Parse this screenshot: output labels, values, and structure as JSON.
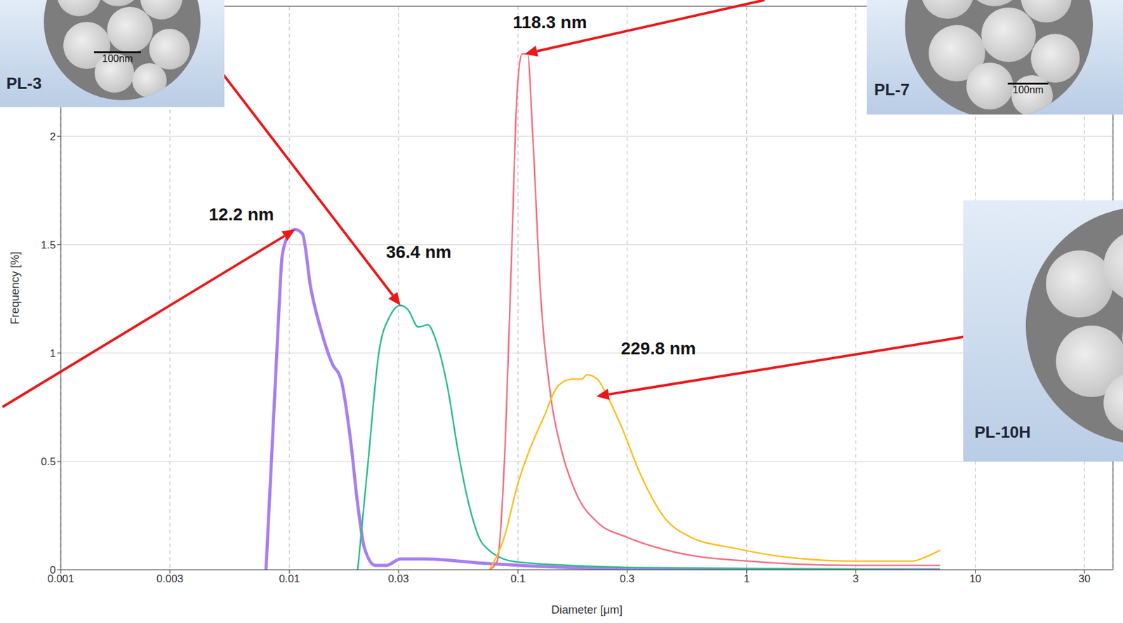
{
  "chart_data": {
    "type": "line",
    "x_label": "Diameter [μm]",
    "y_label": "Frequency [%]",
    "log": "x",
    "grid": true,
    "xlim": [
      0.001,
      40
    ],
    "xticks": [
      0.001,
      0.003,
      0.01,
      0.03,
      0.1,
      0.3,
      1,
      3,
      10,
      30
    ],
    "ylim": [
      0,
      2.6
    ],
    "yticks": [
      0,
      0.5,
      1,
      1.5,
      2
    ],
    "series": [
      {
        "color": "#a67ff0",
        "x": [
          0.0079,
          0.009,
          0.0093,
          0.01,
          0.0106,
          0.0114,
          0.0124,
          0.0138,
          0.0154,
          0.0168,
          0.0185,
          0.0199,
          0.0213,
          0.0238,
          0.0265,
          0.0306,
          0.0394,
          0.07,
          0.167,
          0.71,
          7
        ],
        "values": [
          0,
          1.2,
          1.45,
          1.55,
          1.57,
          1.55,
          1.3,
          1.1,
          0.95,
          0.88,
          0.6,
          0.3,
          0.1,
          0.02,
          0.02,
          0.05,
          0.05,
          0.03,
          0.01,
          0,
          0
        ]
      },
      {
        "color": "#2dbb8c",
        "x": [
          0.0199,
          0.0221,
          0.0246,
          0.0275,
          0.0306,
          0.033,
          0.0366,
          0.0403,
          0.044,
          0.049,
          0.0546,
          0.061,
          0.07,
          0.094,
          0.167,
          0.34,
          7
        ],
        "values": [
          0,
          0.5,
          1.0,
          1.17,
          1.22,
          1.2,
          1.12,
          1.13,
          1.05,
          0.85,
          0.55,
          0.3,
          0.12,
          0.04,
          0.02,
          0.01,
          0
        ]
      },
      {
        "color": "#f07282",
        "x": [
          0.075,
          0.081,
          0.088,
          0.094,
          0.099,
          0.104,
          0.11,
          0.116,
          0.125,
          0.139,
          0.155,
          0.18,
          0.222,
          0.3,
          0.49,
          1.02,
          3.0,
          7
        ],
        "values": [
          0,
          0.04,
          0.6,
          1.5,
          2.2,
          2.38,
          2.38,
          2.0,
          1.3,
          0.8,
          0.55,
          0.35,
          0.22,
          0.15,
          0.08,
          0.04,
          0.02,
          0.02
        ]
      },
      {
        "color": "#f8c024",
        "x": [
          0.075,
          0.087,
          0.1,
          0.112,
          0.129,
          0.15,
          0.172,
          0.19,
          0.2,
          0.222,
          0.246,
          0.286,
          0.34,
          0.43,
          0.57,
          0.88,
          1.45,
          3.0,
          5.3,
          6.1,
          7
        ],
        "values": [
          0,
          0.15,
          0.4,
          0.55,
          0.7,
          0.85,
          0.88,
          0.88,
          0.9,
          0.88,
          0.8,
          0.65,
          0.45,
          0.25,
          0.15,
          0.1,
          0.06,
          0.04,
          0.04,
          0.06,
          0.09
        ]
      }
    ],
    "annotations": [
      {
        "text": "12.2 nm",
        "x": 0.0106,
        "y": 1.57
      },
      {
        "text": "36.4 nm",
        "x": 0.0306,
        "y": 1.22
      },
      {
        "text": "118.3 nm",
        "x": 0.107,
        "y": 2.38
      },
      {
        "text": "229.8 nm",
        "x": 0.22,
        "y": 0.8
      }
    ],
    "insets": [
      {
        "label": "PL-3",
        "scale_bar": "100nm"
      },
      {
        "label": "PL-7",
        "scale_bar": "100nm"
      },
      {
        "label": "PL-10H"
      }
    ]
  }
}
